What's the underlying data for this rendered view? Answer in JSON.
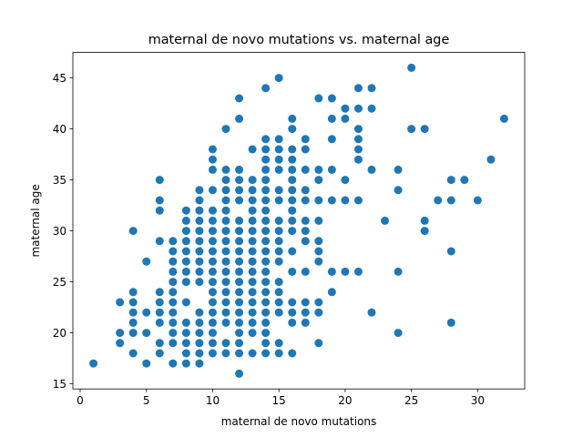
{
  "chart_data": {
    "type": "scatter",
    "title": "maternal de novo mutations vs. maternal age",
    "xlabel": "maternal de novo mutations",
    "ylabel": "maternal age",
    "xlim": [
      -0.55,
      33.55
    ],
    "ylim": [
      14.5,
      47.5
    ],
    "xticks": [
      0,
      5,
      10,
      15,
      20,
      25,
      30
    ],
    "yticks": [
      15,
      20,
      25,
      30,
      35,
      40,
      45
    ],
    "marker_color": "#1f77b4",
    "grid": false,
    "points": [
      [
        1,
        17
      ],
      [
        3,
        19
      ],
      [
        3,
        20
      ],
      [
        3,
        23
      ],
      [
        4,
        18
      ],
      [
        4,
        20
      ],
      [
        4,
        21
      ],
      [
        4,
        22
      ],
      [
        4,
        23
      ],
      [
        4,
        24
      ],
      [
        4,
        30
      ],
      [
        5,
        17
      ],
      [
        5,
        20
      ],
      [
        5,
        22
      ],
      [
        5,
        27
      ],
      [
        6,
        18
      ],
      [
        6,
        19
      ],
      [
        6,
        21
      ],
      [
        6,
        22
      ],
      [
        6,
        23
      ],
      [
        6,
        24
      ],
      [
        6,
        29
      ],
      [
        6,
        32
      ],
      [
        6,
        33
      ],
      [
        6,
        35
      ],
      [
        7,
        17
      ],
      [
        7,
        19
      ],
      [
        7,
        20
      ],
      [
        7,
        21
      ],
      [
        7,
        22
      ],
      [
        7,
        23
      ],
      [
        7,
        24
      ],
      [
        7,
        25
      ],
      [
        7,
        26
      ],
      [
        7,
        27
      ],
      [
        7,
        28
      ],
      [
        7,
        29
      ],
      [
        8,
        17
      ],
      [
        8,
        18
      ],
      [
        8,
        19
      ],
      [
        8,
        20
      ],
      [
        8,
        21
      ],
      [
        8,
        23
      ],
      [
        8,
        25
      ],
      [
        8,
        26
      ],
      [
        8,
        27
      ],
      [
        8,
        28
      ],
      [
        8,
        29
      ],
      [
        8,
        30
      ],
      [
        8,
        31
      ],
      [
        8,
        32
      ],
      [
        9,
        17
      ],
      [
        9,
        18
      ],
      [
        9,
        19
      ],
      [
        9,
        20
      ],
      [
        9,
        21
      ],
      [
        9,
        22
      ],
      [
        9,
        25
      ],
      [
        9,
        26
      ],
      [
        9,
        27
      ],
      [
        9,
        28
      ],
      [
        9,
        29
      ],
      [
        9,
        30
      ],
      [
        9,
        31
      ],
      [
        9,
        32
      ],
      [
        9,
        33
      ],
      [
        9,
        34
      ],
      [
        10,
        18
      ],
      [
        10,
        19
      ],
      [
        10,
        20
      ],
      [
        10,
        21
      ],
      [
        10,
        22
      ],
      [
        10,
        23
      ],
      [
        10,
        24
      ],
      [
        10,
        25
      ],
      [
        10,
        26
      ],
      [
        10,
        27
      ],
      [
        10,
        28
      ],
      [
        10,
        29
      ],
      [
        10,
        30
      ],
      [
        10,
        31
      ],
      [
        10,
        32
      ],
      [
        10,
        34
      ],
      [
        10,
        36
      ],
      [
        10,
        37
      ],
      [
        10,
        38
      ],
      [
        11,
        18
      ],
      [
        11,
        19
      ],
      [
        11,
        21
      ],
      [
        11,
        22
      ],
      [
        11,
        23
      ],
      [
        11,
        24
      ],
      [
        11,
        25
      ],
      [
        11,
        26
      ],
      [
        11,
        27
      ],
      [
        11,
        28
      ],
      [
        11,
        29
      ],
      [
        11,
        30
      ],
      [
        11,
        31
      ],
      [
        11,
        32
      ],
      [
        11,
        33
      ],
      [
        11,
        34
      ],
      [
        11,
        35
      ],
      [
        11,
        36
      ],
      [
        11,
        40
      ],
      [
        12,
        16
      ],
      [
        12,
        18
      ],
      [
        12,
        19
      ],
      [
        12,
        20
      ],
      [
        12,
        21
      ],
      [
        12,
        22
      ],
      [
        12,
        23
      ],
      [
        12,
        24
      ],
      [
        12,
        25
      ],
      [
        12,
        26
      ],
      [
        12,
        27
      ],
      [
        12,
        28
      ],
      [
        12,
        29
      ],
      [
        12,
        30
      ],
      [
        12,
        31
      ],
      [
        12,
        33
      ],
      [
        12,
        34
      ],
      [
        12,
        35
      ],
      [
        12,
        36
      ],
      [
        12,
        41
      ],
      [
        12,
        43
      ],
      [
        13,
        18
      ],
      [
        13,
        20
      ],
      [
        13,
        21
      ],
      [
        13,
        22
      ],
      [
        13,
        23
      ],
      [
        13,
        24
      ],
      [
        13,
        25
      ],
      [
        13,
        26
      ],
      [
        13,
        27
      ],
      [
        13,
        28
      ],
      [
        13,
        29
      ],
      [
        13,
        30
      ],
      [
        13,
        31
      ],
      [
        13,
        32
      ],
      [
        13,
        33
      ],
      [
        13,
        34
      ],
      [
        13,
        35
      ],
      [
        13,
        38
      ],
      [
        14,
        18
      ],
      [
        14,
        19
      ],
      [
        14,
        20
      ],
      [
        14,
        21
      ],
      [
        14,
        22
      ],
      [
        14,
        23
      ],
      [
        14,
        24
      ],
      [
        14,
        25
      ],
      [
        14,
        26
      ],
      [
        14,
        27
      ],
      [
        14,
        28
      ],
      [
        14,
        29
      ],
      [
        14,
        30
      ],
      [
        14,
        31
      ],
      [
        14,
        32
      ],
      [
        14,
        33
      ],
      [
        14,
        34
      ],
      [
        14,
        35
      ],
      [
        14,
        36
      ],
      [
        14,
        37
      ],
      [
        14,
        38
      ],
      [
        14,
        39
      ],
      [
        14,
        44
      ],
      [
        15,
        18
      ],
      [
        15,
        19
      ],
      [
        15,
        22
      ],
      [
        15,
        23
      ],
      [
        15,
        24
      ],
      [
        15,
        25
      ],
      [
        15,
        27
      ],
      [
        15,
        28
      ],
      [
        15,
        29
      ],
      [
        15,
        30
      ],
      [
        15,
        31
      ],
      [
        15,
        33
      ],
      [
        15,
        34
      ],
      [
        15,
        36
      ],
      [
        15,
        37
      ],
      [
        15,
        38
      ],
      [
        15,
        39
      ],
      [
        15,
        45
      ],
      [
        16,
        18
      ],
      [
        16,
        21
      ],
      [
        16,
        22
      ],
      [
        16,
        23
      ],
      [
        16,
        26
      ],
      [
        16,
        28
      ],
      [
        16,
        30
      ],
      [
        16,
        31
      ],
      [
        16,
        32
      ],
      [
        16,
        33
      ],
      [
        16,
        34
      ],
      [
        16,
        35
      ],
      [
        16,
        36
      ],
      [
        16,
        37
      ],
      [
        16,
        38
      ],
      [
        16,
        40
      ],
      [
        16,
        41
      ],
      [
        17,
        21
      ],
      [
        17,
        22
      ],
      [
        17,
        23
      ],
      [
        17,
        26
      ],
      [
        17,
        29
      ],
      [
        17,
        30
      ],
      [
        17,
        31
      ],
      [
        17,
        33
      ],
      [
        17,
        34
      ],
      [
        17,
        36
      ],
      [
        17,
        38
      ],
      [
        17,
        39
      ],
      [
        18,
        19
      ],
      [
        18,
        22
      ],
      [
        18,
        23
      ],
      [
        18,
        27
      ],
      [
        18,
        28
      ],
      [
        18,
        29
      ],
      [
        18,
        31
      ],
      [
        18,
        33
      ],
      [
        18,
        35
      ],
      [
        18,
        36
      ],
      [
        18,
        43
      ],
      [
        19,
        24
      ],
      [
        19,
        26
      ],
      [
        19,
        33
      ],
      [
        19,
        36
      ],
      [
        19,
        39
      ],
      [
        19,
        41
      ],
      [
        19,
        43
      ],
      [
        20,
        26
      ],
      [
        20,
        33
      ],
      [
        20,
        35
      ],
      [
        20,
        41
      ],
      [
        20,
        42
      ],
      [
        21,
        26
      ],
      [
        21,
        33
      ],
      [
        21,
        37
      ],
      [
        21,
        38
      ],
      [
        21,
        39
      ],
      [
        21,
        40
      ],
      [
        21,
        42
      ],
      [
        21,
        44
      ],
      [
        22,
        22
      ],
      [
        22,
        36
      ],
      [
        22,
        42
      ],
      [
        22,
        44
      ],
      [
        23,
        31
      ],
      [
        24,
        20
      ],
      [
        24,
        26
      ],
      [
        24,
        34
      ],
      [
        24,
        36
      ],
      [
        25,
        40
      ],
      [
        25,
        46
      ],
      [
        26,
        30
      ],
      [
        26,
        31
      ],
      [
        26,
        40
      ],
      [
        27,
        33
      ],
      [
        28,
        21
      ],
      [
        28,
        28
      ],
      [
        28,
        33
      ],
      [
        28,
        35
      ],
      [
        29,
        35
      ],
      [
        30,
        33
      ],
      [
        31,
        37
      ],
      [
        32,
        41
      ]
    ]
  }
}
